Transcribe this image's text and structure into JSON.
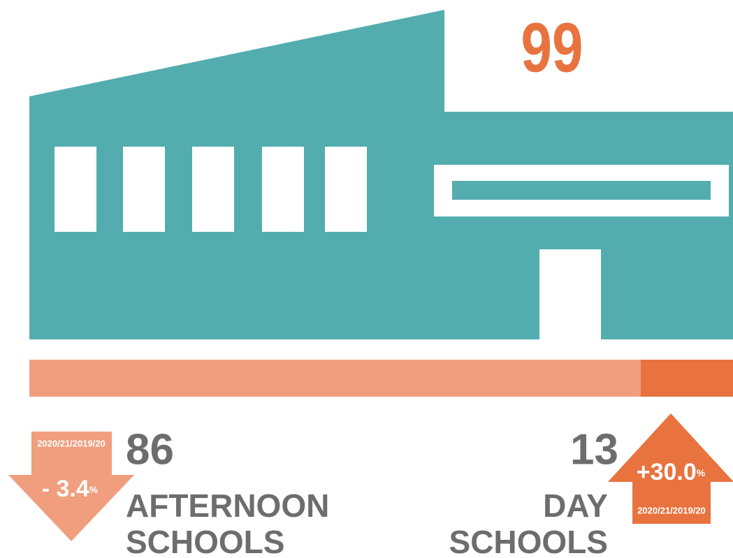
{
  "total": 99,
  "afternoon": {
    "count": 86,
    "label_line1": "AFTERNOON",
    "label_line2": "SCHOOLS",
    "period": "2020/21/2019/20",
    "change": "- 3.4",
    "change_unit": "%"
  },
  "day": {
    "count": 13,
    "label_line1": "DAY",
    "label_line2": "SCHOOLS",
    "period": "2020/21/2019/20",
    "change": "+30.0",
    "change_unit": "%"
  }
}
